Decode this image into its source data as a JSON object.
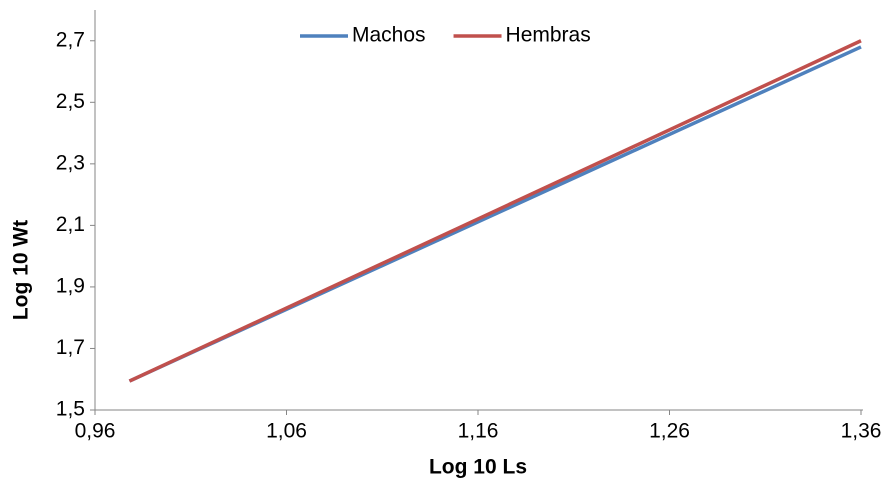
{
  "chart_data": {
    "type": "line",
    "x_label": "Log 10 Ls",
    "y_label": "Log 10 Wt",
    "x": [
      0.978,
      1.36
    ],
    "series": [
      {
        "name": "Machos",
        "color": "#4f81bd",
        "values": [
          1.594,
          2.68
        ]
      },
      {
        "name": "Hembras",
        "color": "#c0504d",
        "values": [
          1.594,
          2.7
        ]
      }
    ],
    "xlim": [
      0.96,
      1.36
    ],
    "xticks": [
      {
        "value": 0.96,
        "label": "0,96"
      },
      {
        "value": 1.06,
        "label": "1,06"
      },
      {
        "value": 1.16,
        "label": "1,16"
      },
      {
        "value": 1.26,
        "label": "1,26"
      },
      {
        "value": 1.36,
        "label": "1,36"
      }
    ],
    "ylim": [
      1.5,
      2.8
    ],
    "yticks": [
      {
        "value": 1.5,
        "label": "1,5"
      },
      {
        "value": 1.7,
        "label": "1,7"
      },
      {
        "value": 1.9,
        "label": "1,9"
      },
      {
        "value": 2.1,
        "label": "2,1"
      },
      {
        "value": 2.3,
        "label": "2,3"
      },
      {
        "value": 2.5,
        "label": "2,5"
      },
      {
        "value": 2.7,
        "label": "2,7"
      }
    ],
    "legend": "top",
    "grid": false
  }
}
